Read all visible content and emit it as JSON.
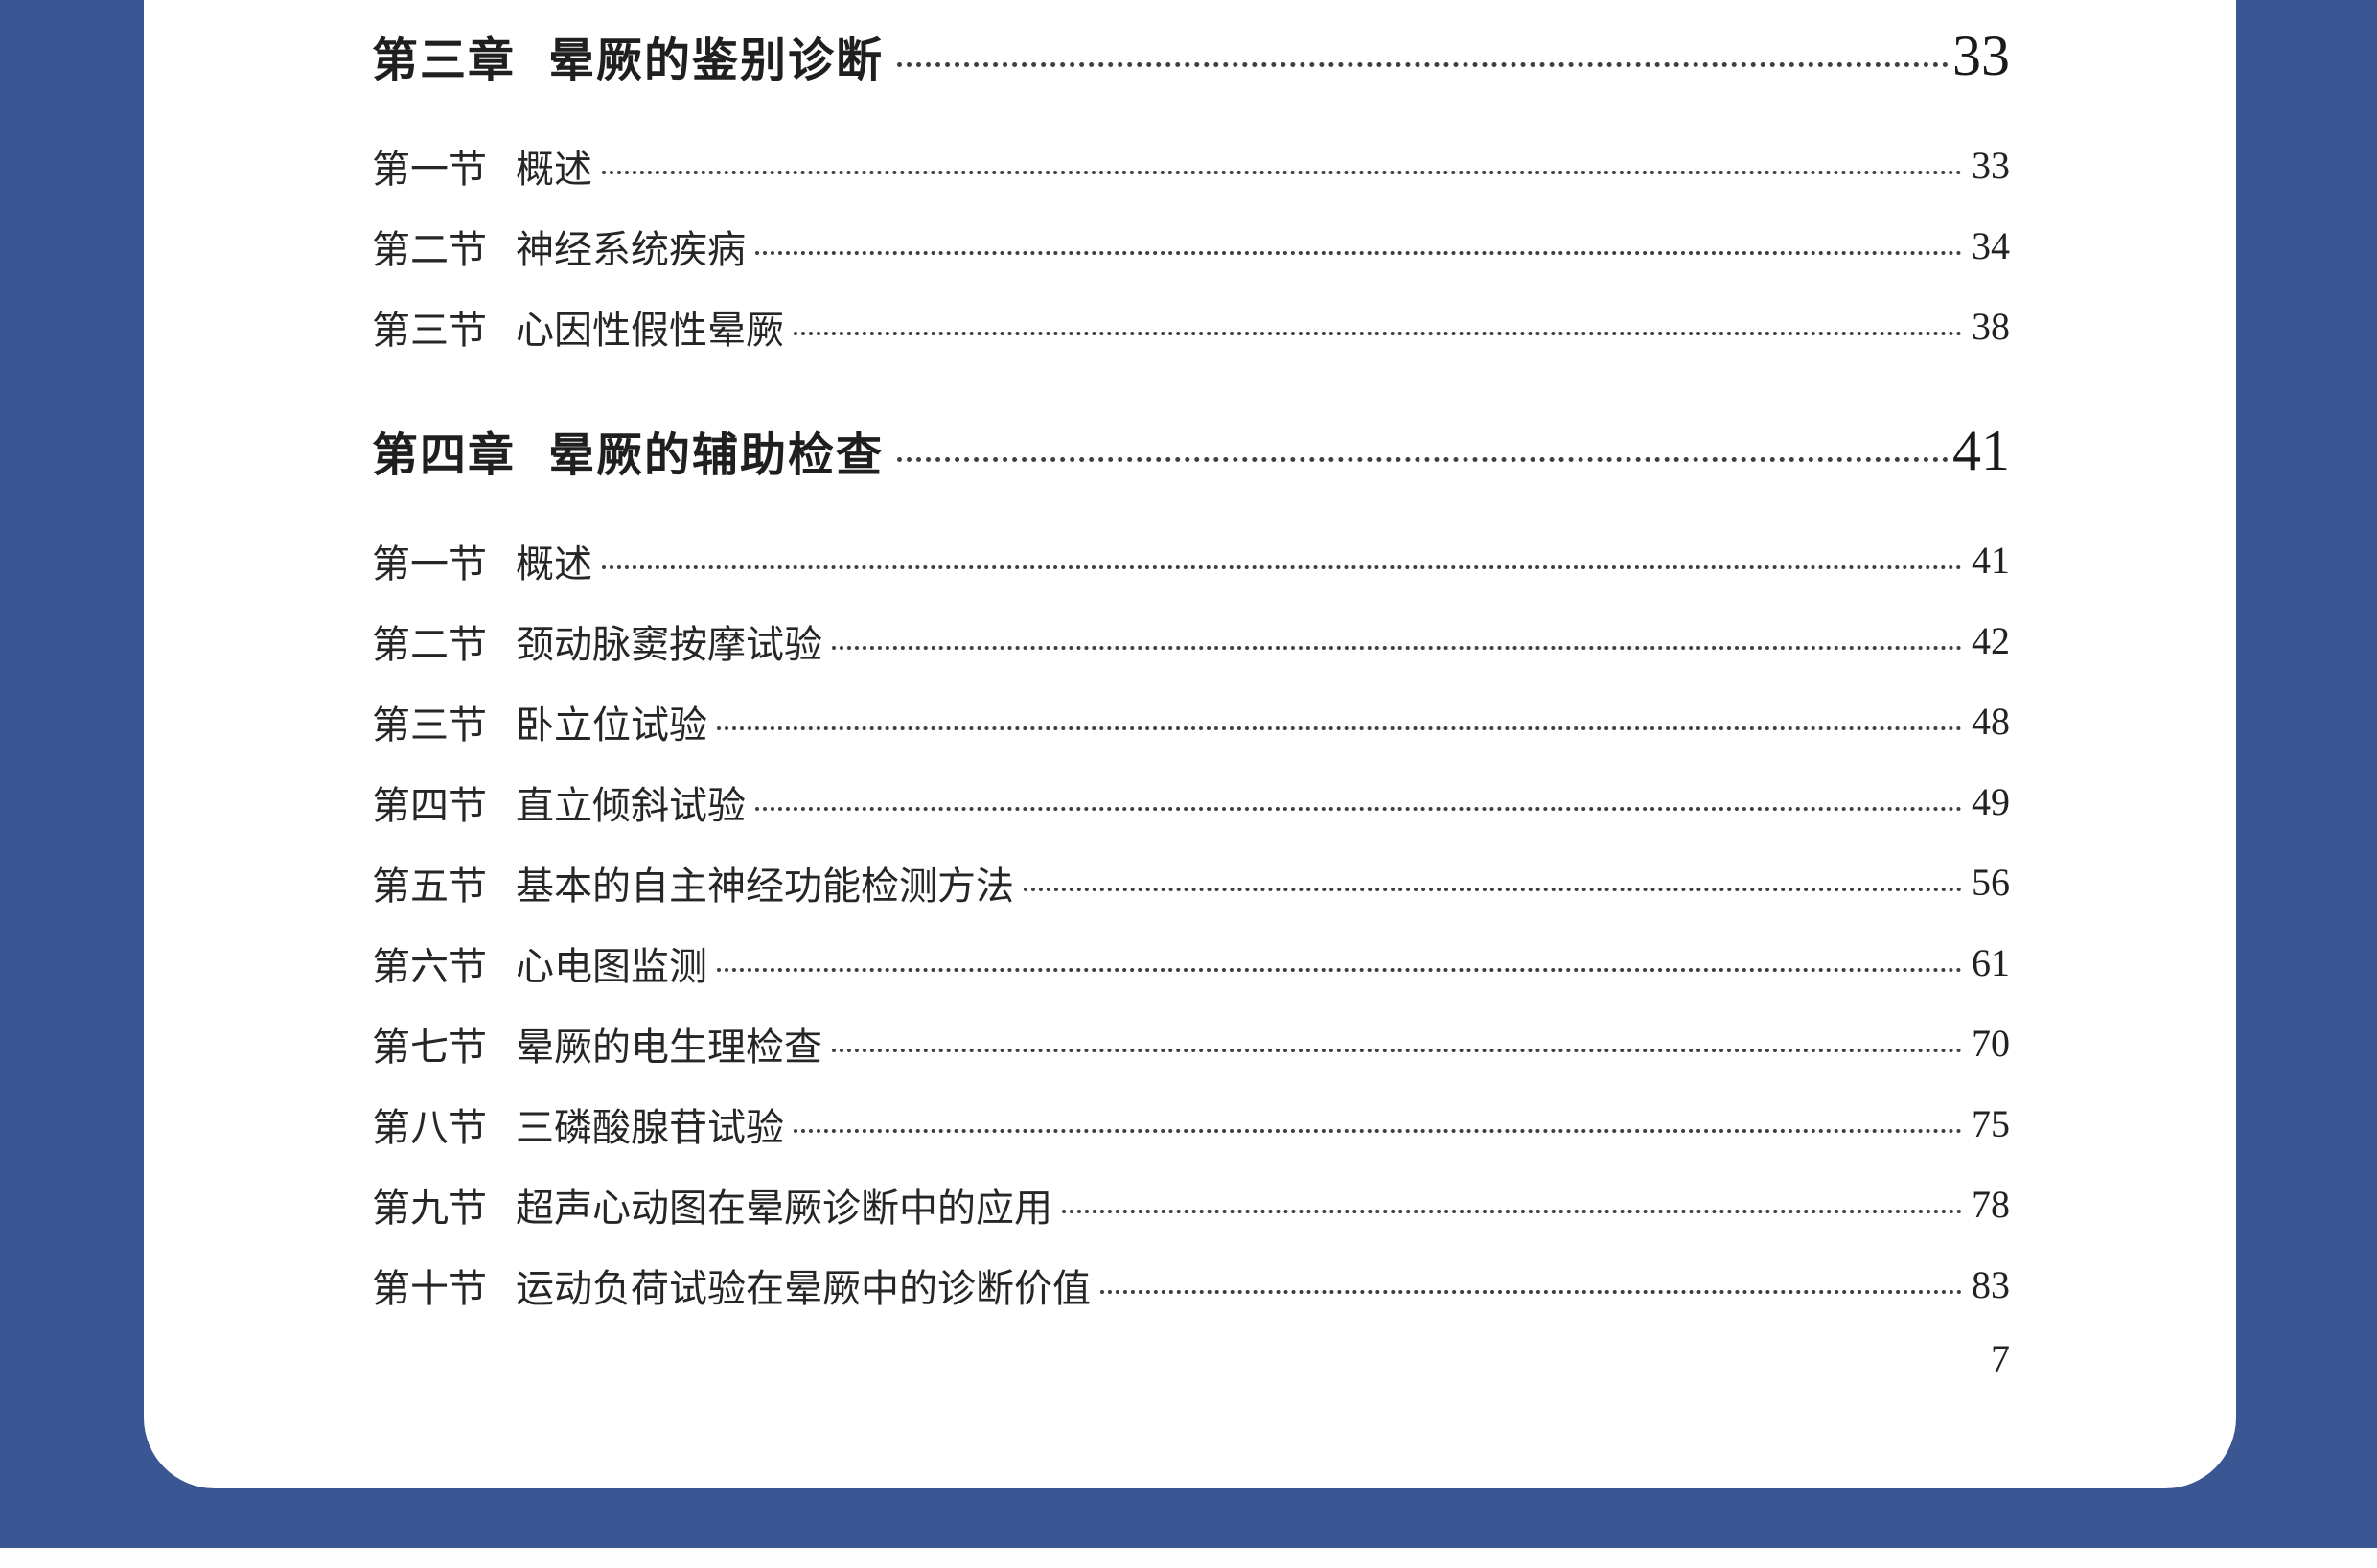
{
  "page": {
    "folio": "7",
    "colors": {
      "backdrop_blue": "#3a5794",
      "card_white": "#ffffff",
      "text_dark": "#262626"
    }
  },
  "toc": {
    "chapters": [
      {
        "label": "第三章",
        "title": "晕厥的鉴别诊断",
        "page": "33",
        "sections": [
          {
            "label": "第一节",
            "title": "概述",
            "page": "33"
          },
          {
            "label": "第二节",
            "title": "神经系统疾病",
            "page": "34"
          },
          {
            "label": "第三节",
            "title": "心因性假性晕厥",
            "page": "38"
          }
        ]
      },
      {
        "label": "第四章",
        "title": "晕厥的辅助检查",
        "page": "41",
        "sections": [
          {
            "label": "第一节",
            "title": "概述",
            "page": "41"
          },
          {
            "label": "第二节",
            "title": "颈动脉窦按摩试验",
            "page": "42"
          },
          {
            "label": "第三节",
            "title": "卧立位试验",
            "page": "48"
          },
          {
            "label": "第四节",
            "title": "直立倾斜试验",
            "page": "49"
          },
          {
            "label": "第五节",
            "title": "基本的自主神经功能检测方法",
            "page": "56"
          },
          {
            "label": "第六节",
            "title": "心电图监测",
            "page": "61"
          },
          {
            "label": "第七节",
            "title": "晕厥的电生理检查",
            "page": "70"
          },
          {
            "label": "第八节",
            "title": "三磷酸腺苷试验",
            "page": "75"
          },
          {
            "label": "第九节",
            "title": "超声心动图在晕厥诊断中的应用",
            "page": "78"
          },
          {
            "label": "第十节",
            "title": "运动负荷试验在晕厥中的诊断价值",
            "page": "83"
          }
        ]
      }
    ]
  }
}
